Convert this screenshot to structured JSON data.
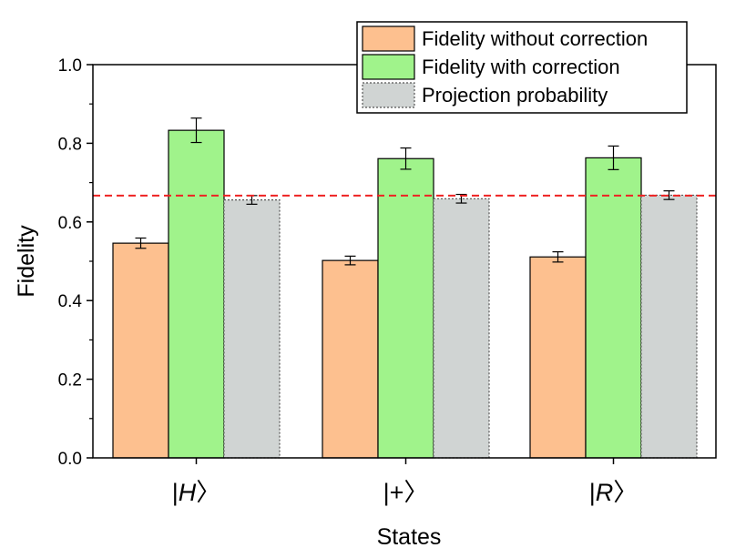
{
  "chart_data": {
    "type": "bar",
    "title": "",
    "xlabel": "States",
    "ylabel": "Fidelity",
    "categories": [
      {
        "label": "|",
        "italic": "H",
        "close": "〉"
      },
      {
        "label": "|",
        "italic": "+",
        "close": "〉"
      },
      {
        "label": "|",
        "italic": "R",
        "close": "〉"
      }
    ],
    "category_text": [
      "|H〉",
      "|+〉",
      "|R〉"
    ],
    "ylim": [
      0.0,
      1.0
    ],
    "yticks": [
      "0.0",
      "0.2",
      "0.4",
      "0.6",
      "0.8",
      "1.0"
    ],
    "ytick_values": [
      0.0,
      0.2,
      0.4,
      0.6,
      0.8,
      1.0
    ],
    "series": [
      {
        "name": "Fidelity without correction",
        "color": "#fdc08f",
        "border": "solid",
        "values": [
          0.546,
          0.502,
          0.511
        ],
        "errors": [
          0.013,
          0.011,
          0.013
        ]
      },
      {
        "name": "Fidelity with correction",
        "color": "#a0f38b",
        "border": "solid",
        "values": [
          0.833,
          0.761,
          0.763
        ],
        "errors": [
          0.031,
          0.027,
          0.03
        ]
      },
      {
        "name": "Projection probability",
        "color": "#d0d4d3",
        "border": "dotted",
        "values": [
          0.656,
          0.659,
          0.668
        ],
        "errors": [
          0.011,
          0.011,
          0.011
        ]
      }
    ],
    "reference_line": {
      "value": 0.667,
      "color": "#ee2222",
      "style": "dashed"
    },
    "legend_position": "top-right",
    "grid": false
  }
}
